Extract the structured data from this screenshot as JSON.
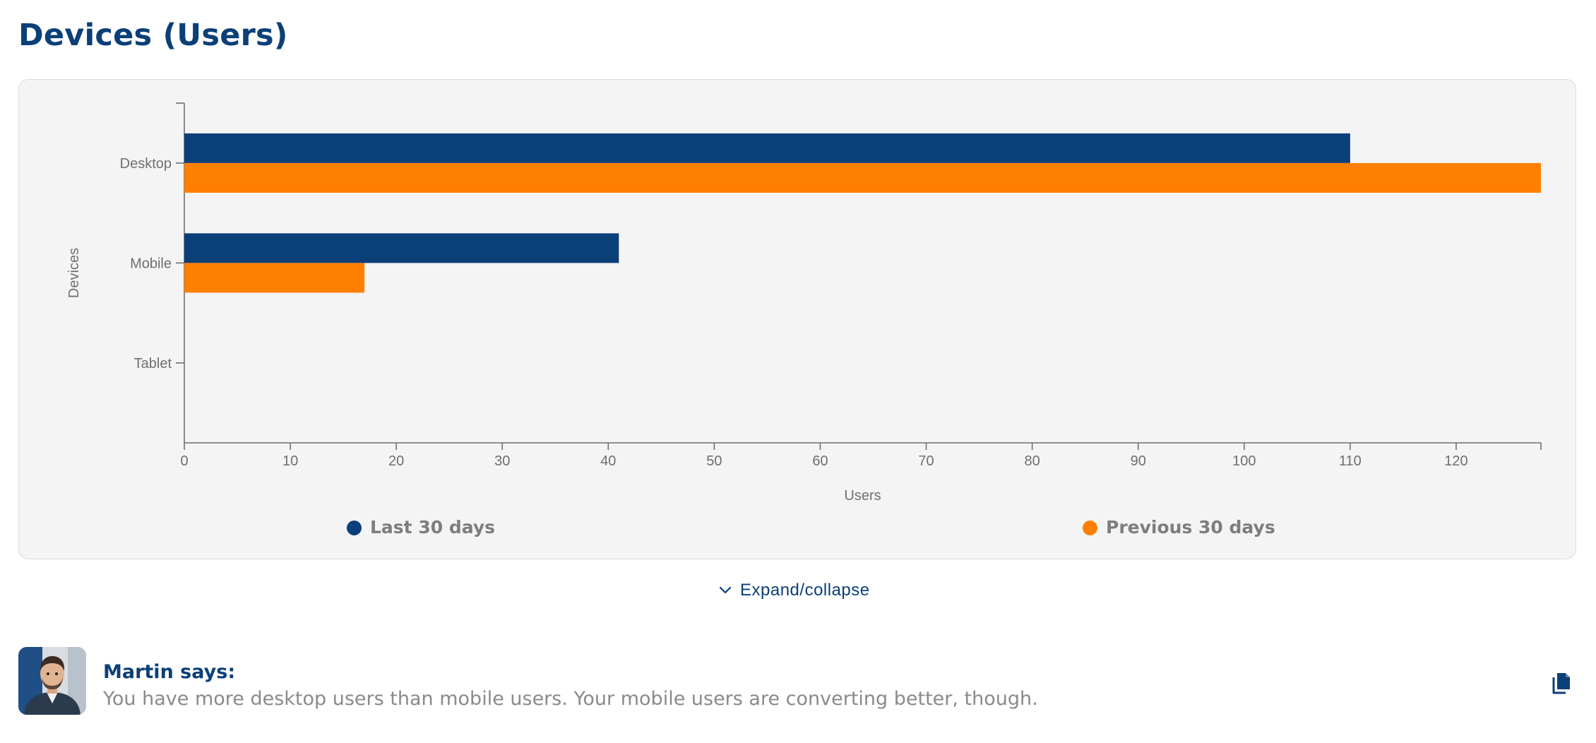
{
  "page": {
    "title": "Devices (Users)"
  },
  "chart_data": {
    "type": "bar",
    "orientation": "horizontal",
    "categories": [
      "Desktop",
      "Mobile",
      "Tablet"
    ],
    "series": [
      {
        "name": "Last 30 days",
        "values": [
          110,
          41,
          0
        ],
        "color": "#0b3f78"
      },
      {
        "name": "Previous 30 days",
        "values": [
          128,
          17,
          0
        ],
        "color": "#ff7f00"
      }
    ],
    "xlabel": "Users",
    "ylabel": "Devices",
    "xlim": [
      0,
      128
    ],
    "xticks": [
      0,
      10,
      20,
      30,
      40,
      50,
      60,
      70,
      80,
      90,
      100,
      110,
      120
    ],
    "grid": false,
    "legend": "bottom"
  },
  "controls": {
    "expand_label": "Expand/collapse"
  },
  "insight": {
    "speaker": "Martin says:",
    "message": "You have more desktop users than mobile users. Your mobile users are converting better, though."
  },
  "icons": {
    "toggle": "chevron-down-icon",
    "copy": "copy-icon",
    "avatar": "avatar-photo"
  }
}
